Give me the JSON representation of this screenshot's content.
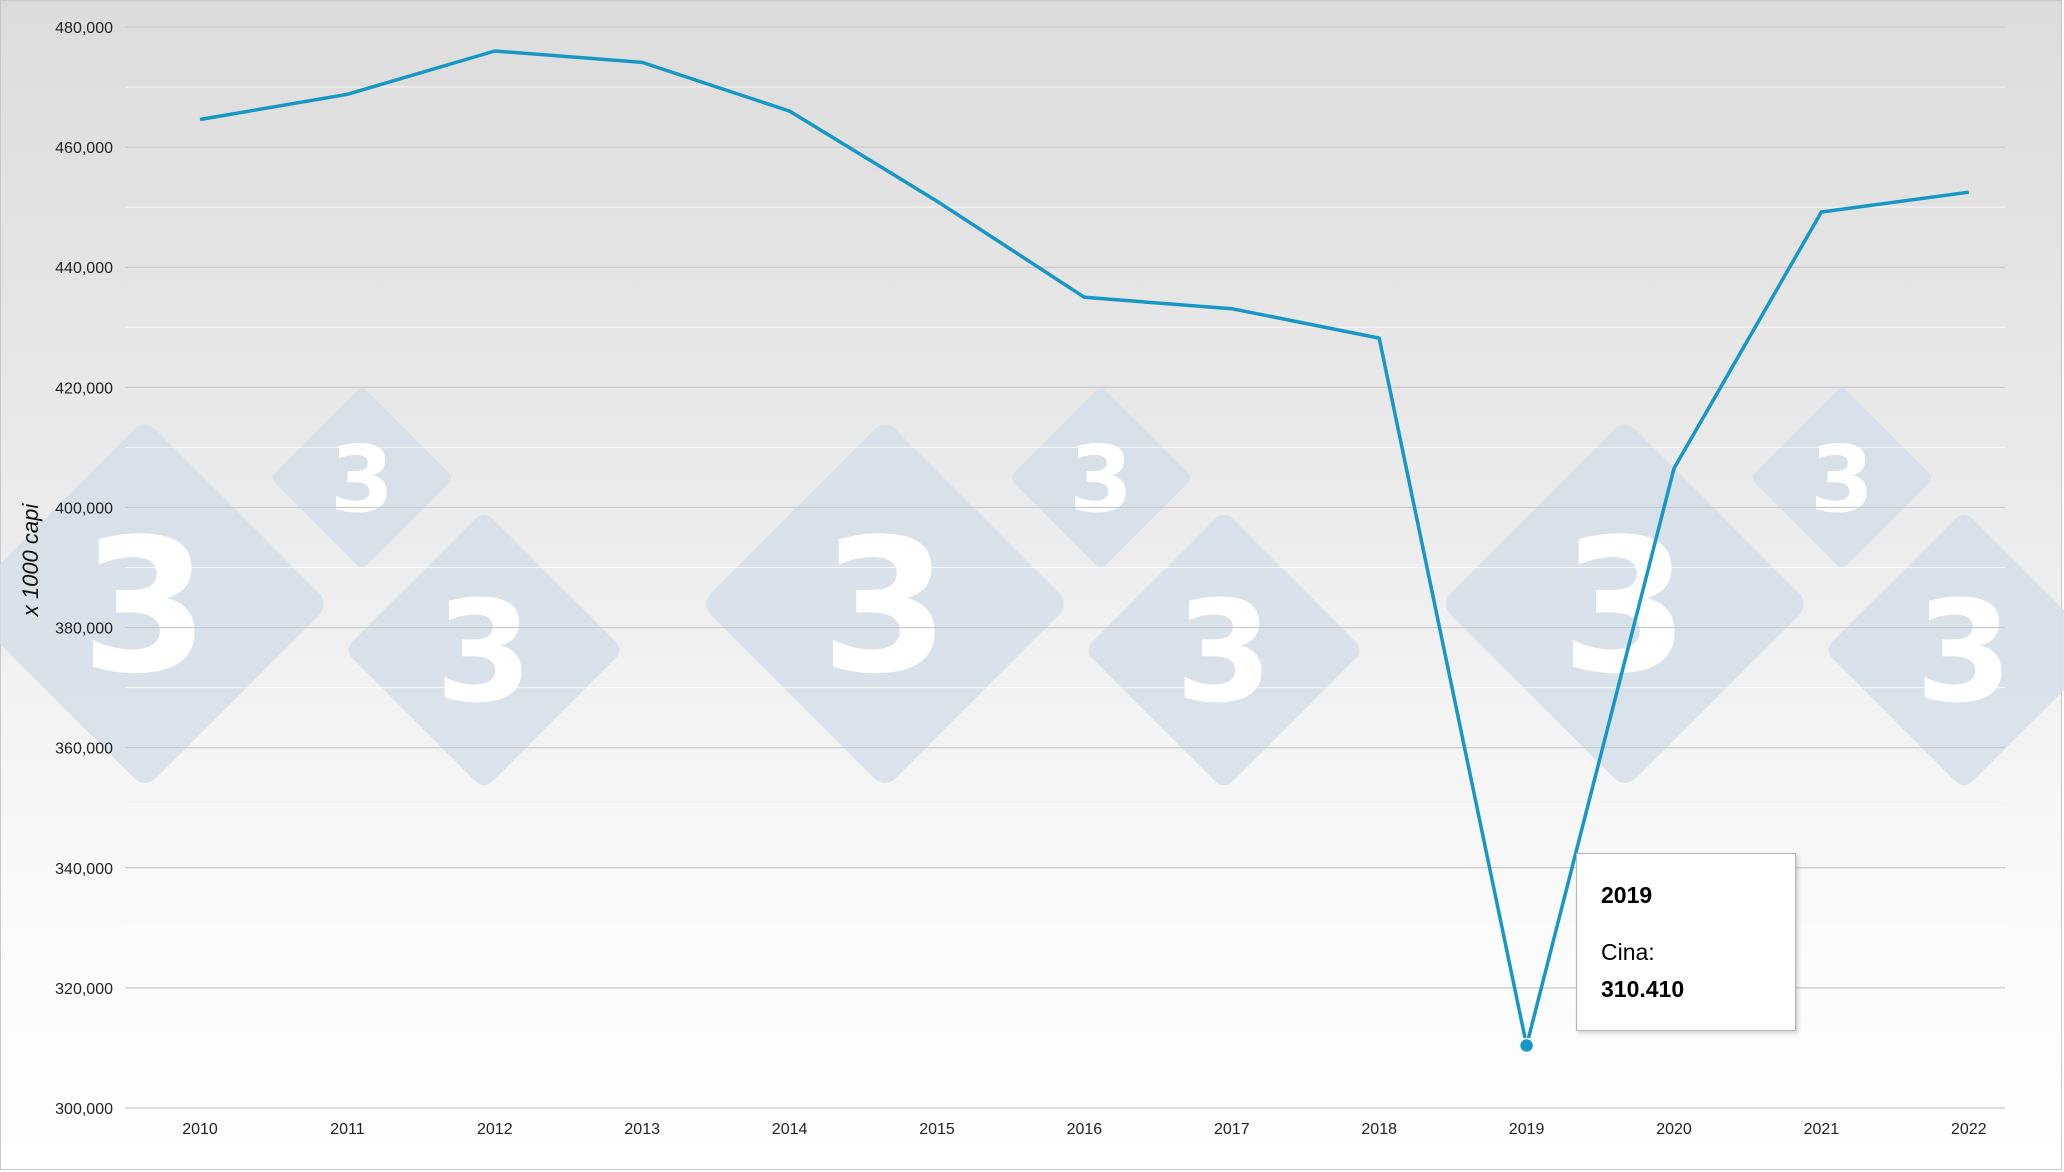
{
  "chart_data": {
    "type": "line",
    "ylabel": "x 1000 capi",
    "x": [
      "2010",
      "2011",
      "2012",
      "2013",
      "2014",
      "2015",
      "2016",
      "2017",
      "2018",
      "2019",
      "2020",
      "2021",
      "2022"
    ],
    "series": [
      {
        "name": "Cina",
        "values": [
          464600,
          468800,
          476000,
          474100,
          466000,
          451000,
          435000,
          433100,
          428200,
          310410,
          406500,
          449200,
          452500
        ]
      }
    ],
    "ylim": [
      300000,
      480000
    ],
    "yticks": [
      300000,
      320000,
      340000,
      360000,
      380000,
      400000,
      420000,
      440000,
      460000,
      480000
    ],
    "ytick_labels": [
      "300,000",
      "320,000",
      "340,000",
      "360,000",
      "380,000",
      "400,000",
      "420,000",
      "440,000",
      "460,000",
      "480,000"
    ],
    "grid": true,
    "legend": "none",
    "colors": {
      "line": "#1797c6",
      "watermark": "#d5dfe9",
      "grid": "#c9c9c9"
    },
    "watermark_glyph": "3",
    "tooltip": {
      "year": "2019",
      "series_label": "Cina:",
      "value_label": "310.410",
      "highlight_index": 9
    }
  }
}
